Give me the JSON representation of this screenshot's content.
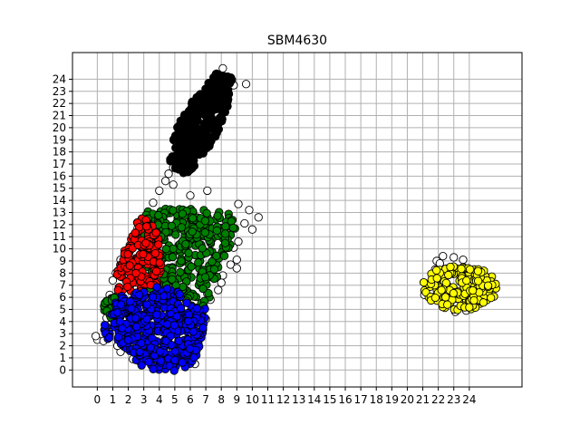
{
  "chart_data": {
    "type": "scatter",
    "title": "SBM4630",
    "xlabel": "",
    "ylabel": "",
    "xlim": [
      -1.6,
      27.4
    ],
    "ylim": [
      -1.4,
      26.2
    ],
    "grid": true,
    "x_ticks": [
      "0",
      "1",
      "2",
      "3",
      "4",
      "5",
      "6",
      "7",
      "8",
      "9",
      "10",
      "11",
      "12",
      "13",
      "14",
      "15",
      "16",
      "17",
      "18",
      "19",
      "20",
      "21",
      "22",
      "23",
      "24"
    ],
    "y_ticks": [
      "0",
      "1",
      "2",
      "3",
      "4",
      "5",
      "6",
      "7",
      "8",
      "9",
      "10",
      "11",
      "12",
      "13",
      "14",
      "15",
      "16",
      "17",
      "18",
      "19",
      "20",
      "21",
      "22",
      "23",
      "24"
    ],
    "marker_edge_color": "#000000",
    "clusters": [
      {
        "color": "#ffffff",
        "shape": "scatter",
        "points": [
          [
            8.1,
            24.9
          ],
          [
            8.0,
            24.2
          ],
          [
            7.6,
            23.8
          ],
          [
            8.8,
            23.5
          ],
          [
            9.6,
            23.6
          ],
          [
            7.1,
            22.8
          ],
          [
            6.6,
            21.9
          ],
          [
            5.6,
            18.0
          ],
          [
            5.0,
            17.2
          ],
          [
            4.9,
            16.7
          ],
          [
            4.6,
            16.2
          ],
          [
            4.4,
            15.6
          ],
          [
            4.9,
            15.3
          ],
          [
            6.0,
            14.4
          ],
          [
            7.1,
            14.8
          ],
          [
            4.0,
            14.8
          ],
          [
            9.1,
            13.7
          ],
          [
            9.8,
            13.2
          ],
          [
            10.4,
            12.6
          ],
          [
            9.5,
            12.1
          ],
          [
            10.0,
            11.6
          ],
          [
            9.1,
            10.6
          ],
          [
            8.8,
            10.1
          ],
          [
            9.0,
            9.1
          ],
          [
            8.6,
            8.7
          ],
          [
            9.0,
            8.4
          ],
          [
            8.1,
            7.8
          ],
          [
            8.0,
            7.2
          ],
          [
            7.8,
            6.6
          ],
          [
            7.1,
            6.3
          ],
          [
            7.3,
            5.8
          ],
          [
            7.0,
            4.2
          ],
          [
            6.4,
            1.6
          ],
          [
            6.0,
            0.9
          ],
          [
            6.3,
            0.5
          ],
          [
            2.8,
            0.6
          ],
          [
            2.3,
            0.9
          ],
          [
            1.5,
            1.5
          ],
          [
            1.3,
            2.0
          ],
          [
            0.0,
            2.5
          ],
          [
            -0.1,
            2.8
          ],
          [
            0.4,
            2.4
          ],
          [
            0.8,
            3.7
          ],
          [
            1.0,
            7.4
          ],
          [
            0.8,
            6.2
          ],
          [
            0.5,
            5.1
          ],
          [
            0.6,
            4.3
          ],
          [
            1.2,
            8.0
          ],
          [
            1.5,
            9.1
          ],
          [
            2.1,
            10.3
          ],
          [
            2.6,
            11.7
          ],
          [
            3.0,
            12.4
          ],
          [
            3.6,
            13.8
          ],
          [
            21.9,
            9.0
          ],
          [
            22.3,
            9.4
          ],
          [
            23.0,
            9.3
          ],
          [
            23.6,
            9.1
          ],
          [
            21.6,
            7.5
          ],
          [
            21.8,
            8.3
          ],
          [
            21.4,
            6.9
          ],
          [
            21.1,
            6.2
          ],
          [
            24.8,
            6.6
          ],
          [
            24.7,
            5.8
          ],
          [
            22.4,
            5.2
          ],
          [
            23.1,
            4.8
          ],
          [
            23.8,
            4.9
          ],
          [
            24.2,
            5.3
          ],
          [
            22.1,
            8.8
          ]
        ]
      },
      {
        "color": "#000000",
        "shape": "diagonal",
        "start": [
          5.2,
          16.4
        ],
        "end": [
          8.2,
          24.3
        ],
        "halfwidth": 1.35,
        "count": 380,
        "seed": 11
      },
      {
        "color": "#008000",
        "shape": "polygon",
        "count": 340,
        "seed": 23,
        "polygon": [
          [
            3.2,
            13.3
          ],
          [
            4.2,
            14.0
          ],
          [
            6.2,
            13.3
          ],
          [
            8.9,
            12.9
          ],
          [
            9.0,
            11.9
          ],
          [
            8.6,
            10.4
          ],
          [
            8.2,
            9.3
          ],
          [
            7.8,
            7.8
          ],
          [
            7.4,
            6.6
          ],
          [
            7.0,
            4.6
          ],
          [
            6.2,
            4.8
          ],
          [
            5.3,
            6.4
          ],
          [
            4.0,
            6.9
          ],
          [
            2.8,
            6.4
          ],
          [
            2.9,
            8.7
          ],
          [
            2.9,
            11.2
          ],
          [
            3.0,
            12.6
          ]
        ]
      },
      {
        "color": "#008000",
        "shape": "polygon",
        "count": 40,
        "seed": 29,
        "polygon": [
          [
            0.5,
            4.4
          ],
          [
            1.6,
            4.2
          ],
          [
            1.8,
            5.8
          ],
          [
            1.2,
            6.2
          ],
          [
            0.4,
            5.6
          ]
        ]
      },
      {
        "color": "#ff0000",
        "shape": "polygon",
        "count": 150,
        "seed": 37,
        "polygon": [
          [
            1.2,
            6.6
          ],
          [
            2.8,
            6.4
          ],
          [
            4.0,
            6.9
          ],
          [
            4.2,
            8.4
          ],
          [
            4.0,
            11.3
          ],
          [
            3.1,
            12.6
          ],
          [
            2.6,
            12.6
          ],
          [
            2.1,
            10.6
          ],
          [
            1.5,
            9.4
          ],
          [
            1.2,
            8.0
          ]
        ]
      },
      {
        "color": "#0000ff",
        "shape": "polygon",
        "count": 440,
        "seed": 41,
        "polygon": [
          [
            0.3,
            3.4
          ],
          [
            0.9,
            4.6
          ],
          [
            1.3,
            6.1
          ],
          [
            3.0,
            6.5
          ],
          [
            4.0,
            6.9
          ],
          [
            5.3,
            6.5
          ],
          [
            6.2,
            5.4
          ],
          [
            7.0,
            5.1
          ],
          [
            6.9,
            3.4
          ],
          [
            6.4,
            1.1
          ],
          [
            5.9,
            0.1
          ],
          [
            4.8,
            -0.1
          ],
          [
            3.8,
            0.0
          ],
          [
            2.6,
            0.4
          ],
          [
            1.7,
            1.7
          ],
          [
            0.8,
            2.4
          ],
          [
            0.2,
            3.0
          ]
        ]
      },
      {
        "color": "#ffff00",
        "shape": "blob",
        "center": [
          23.4,
          6.8
        ],
        "rx": 2.4,
        "ry": 1.9,
        "count": 190,
        "seed": 53
      }
    ]
  }
}
